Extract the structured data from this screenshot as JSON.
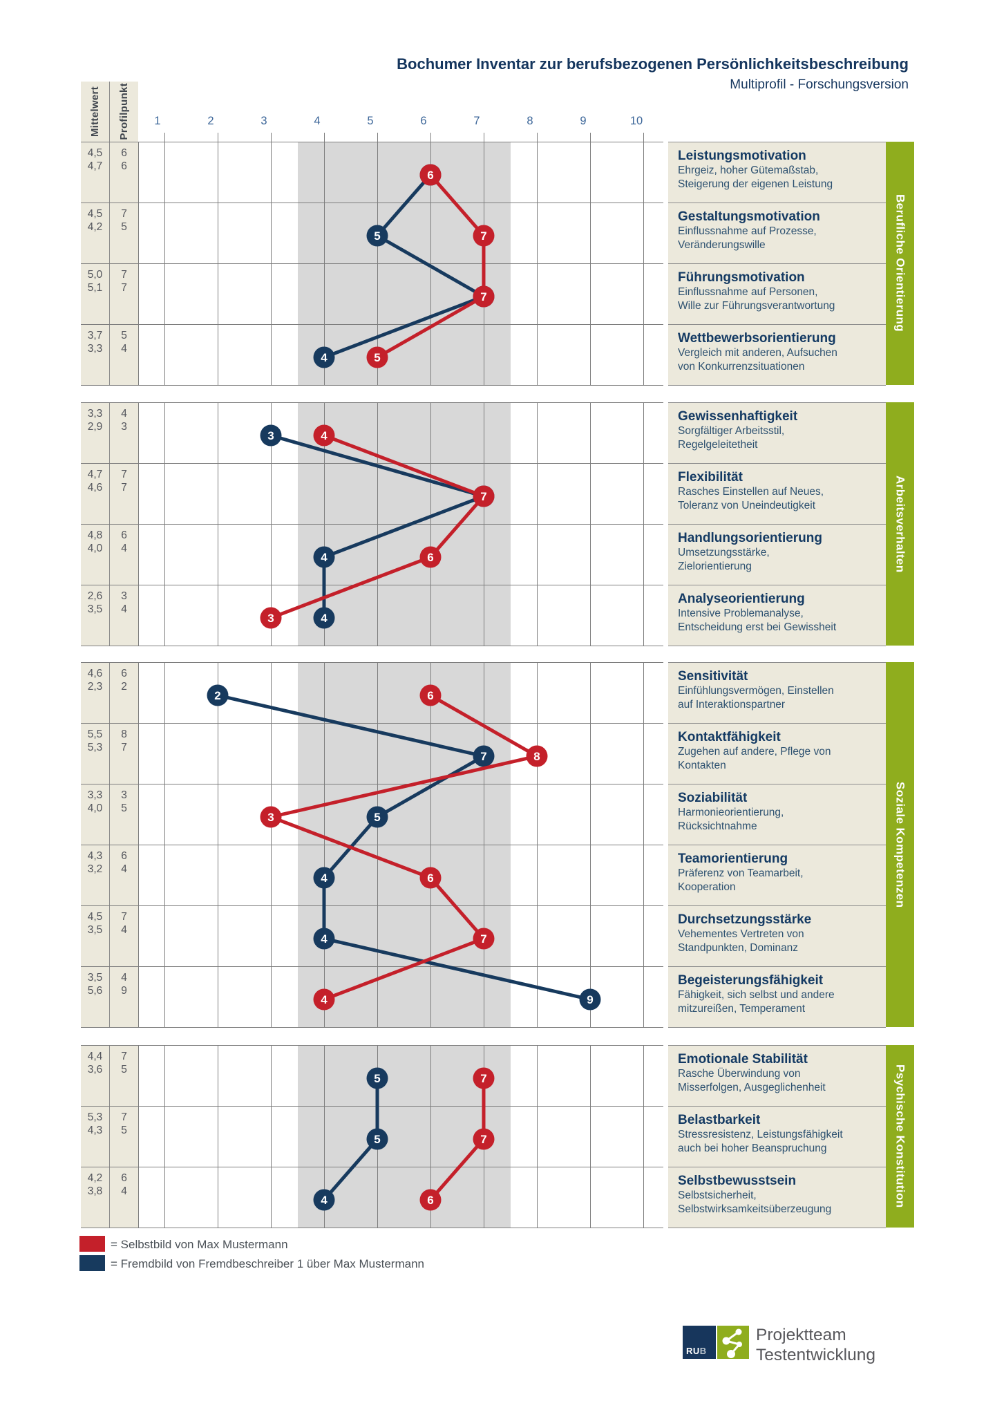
{
  "page": {
    "title": "Bochumer Inventar zur berufsbezogenen Persönlichkeitsbeschreibung",
    "subtitle": "Multiprofil - Forschungsversion"
  },
  "columns": {
    "col1": "Mittelwert",
    "col2": "Profilpunkt"
  },
  "axis_numbers": [
    "1",
    "2",
    "3",
    "4",
    "5",
    "6",
    "7",
    "8",
    "9",
    "10"
  ],
  "legend": {
    "self": {
      "color": "#c4202a",
      "label": "= Selbstbild von Max Mustermann"
    },
    "other": {
      "color": "#173a5e",
      "label": "= Fremdbild von Fremdbeschreiber 1 über Max Mustermann"
    }
  },
  "logo": {
    "rub_ru": "RU",
    "rub_b": "B",
    "team_line1": "Projektteam",
    "team_line2": "Testentwicklung"
  },
  "colors": {
    "self": "#c4202a",
    "other": "#173a5e",
    "band": "#d8d8d8",
    "green": "#8fad1e",
    "beige": "#ece9dc",
    "navy_heading": "#143a63",
    "grid_line": "#7d7d7d"
  },
  "chart_data": {
    "type": "line",
    "title": "Bochumer Inventar zur berufsbezogenen Persönlichkeitsbeschreibung",
    "subtitle": "Multiprofil - Forschungsversion",
    "xlim": [
      1,
      10
    ],
    "grid": true,
    "band": {
      "from": 3.5,
      "to": 7.5,
      "color": "#d8d8d8"
    },
    "series": [
      {
        "id": "selbst",
        "name": "Selbstbild von Max Mustermann",
        "color": "#c4202a"
      },
      {
        "id": "fremd",
        "name": "Fremdbild von Fremdbeschreiber 1 über Max Mustermann",
        "color": "#173a5e"
      }
    ],
    "groups": [
      {
        "name": "Berufliche Orientierung",
        "rows": [
          {
            "label": "Leistungsmotivation",
            "desc": [
              "Ehrgeiz, hoher Gütemaßstab,",
              "Steigerung der eigenen Leistung"
            ],
            "mittelwert": [
              "4,5",
              "4,7"
            ],
            "profilpunkt": [
              6,
              6
            ]
          },
          {
            "label": "Gestaltungsmotivation",
            "desc": [
              "Einflussnahme auf Prozesse,",
              "Veränderungswille"
            ],
            "mittelwert": [
              "4,5",
              "4,2"
            ],
            "profilpunkt": [
              7,
              5
            ]
          },
          {
            "label": "Führungsmotivation",
            "desc": [
              "Einflussnahme auf Personen,",
              "Wille zur Führungsverantwortung"
            ],
            "mittelwert": [
              "5,0",
              "5,1"
            ],
            "profilpunkt": [
              7,
              7
            ]
          },
          {
            "label": "Wettbewerbsorientierung",
            "desc": [
              "Vergleich mit anderen, Aufsuchen",
              "von Konkurrenzsituationen"
            ],
            "mittelwert": [
              "3,7",
              "3,3"
            ],
            "profilpunkt": [
              5,
              4
            ]
          }
        ]
      },
      {
        "name": "Arbeitsverhalten",
        "rows": [
          {
            "label": "Gewissenhaftigkeit",
            "desc": [
              "Sorgfältiger Arbeitsstil,",
              "Regelgeleitetheit"
            ],
            "mittelwert": [
              "3,3",
              "2,9"
            ],
            "profilpunkt": [
              4,
              3
            ]
          },
          {
            "label": "Flexibilität",
            "desc": [
              "Rasches Einstellen auf Neues,",
              "Toleranz von Uneindeutigkeit"
            ],
            "mittelwert": [
              "4,7",
              "4,6"
            ],
            "profilpunkt": [
              7,
              7
            ]
          },
          {
            "label": "Handlungsorientierung",
            "desc": [
              "Umsetzungsstärke,",
              "Zielorientierung"
            ],
            "mittelwert": [
              "4,8",
              "4,0"
            ],
            "profilpunkt": [
              6,
              4
            ]
          },
          {
            "label": "Analyseorientierung",
            "desc": [
              "Intensive Problemanalyse,",
              "Entscheidung erst bei Gewissheit"
            ],
            "mittelwert": [
              "2,6",
              "3,5"
            ],
            "profilpunkt": [
              3,
              4
            ]
          }
        ]
      },
      {
        "name": "Soziale Kompetenzen",
        "rows": [
          {
            "label": "Sensitivität",
            "desc": [
              "Einfühlungsvermögen, Einstellen",
              "auf Interaktionspartner"
            ],
            "mittelwert": [
              "4,6",
              "2,3"
            ],
            "profilpunkt": [
              6,
              2
            ]
          },
          {
            "label": "Kontaktfähigkeit",
            "desc": [
              "Zugehen auf andere, Pflege von",
              "Kontakten"
            ],
            "mittelwert": [
              "5,5",
              "5,3"
            ],
            "profilpunkt": [
              8,
              7
            ]
          },
          {
            "label": "Soziabilität",
            "desc": [
              "Harmonieorientierung,",
              "Rücksichtnahme"
            ],
            "mittelwert": [
              "3,3",
              "4,0"
            ],
            "profilpunkt": [
              3,
              5
            ]
          },
          {
            "label": "Teamorientierung",
            "desc": [
              "Präferenz von Teamarbeit,",
              "Kooperation"
            ],
            "mittelwert": [
              "4,3",
              "3,2"
            ],
            "profilpunkt": [
              6,
              4
            ]
          },
          {
            "label": "Durchsetzungsstärke",
            "desc": [
              "Vehementes Vertreten von",
              "Standpunkten, Dominanz"
            ],
            "mittelwert": [
              "4,5",
              "3,5"
            ],
            "profilpunkt": [
              7,
              4
            ]
          },
          {
            "label": "Begeisterungsfähigkeit",
            "desc": [
              "Fähigkeit, sich selbst und andere",
              "mitzureißen, Temperament"
            ],
            "mittelwert": [
              "3,5",
              "5,6"
            ],
            "profilpunkt": [
              4,
              9
            ]
          }
        ]
      },
      {
        "name": "Psychische Konstitution",
        "rows": [
          {
            "label": "Emotionale Stabilität",
            "desc": [
              "Rasche Überwindung von",
              "Misserfolgen, Ausgeglichenheit"
            ],
            "mittelwert": [
              "4,4",
              "3,6"
            ],
            "profilpunkt": [
              7,
              5
            ]
          },
          {
            "label": "Belastbarkeit",
            "desc": [
              "Stressresistenz, Leistungsfähigkeit",
              "auch bei hoher Beanspruchung"
            ],
            "mittelwert": [
              "5,3",
              "4,3"
            ],
            "profilpunkt": [
              7,
              5
            ]
          },
          {
            "label": "Selbstbewusstsein",
            "desc": [
              "Selbstsicherheit,",
              "Selbstwirksamkeitsüberzeugung"
            ],
            "mittelwert": [
              "4,2",
              "3,8"
            ],
            "profilpunkt": [
              6,
              4
            ]
          }
        ]
      }
    ]
  }
}
